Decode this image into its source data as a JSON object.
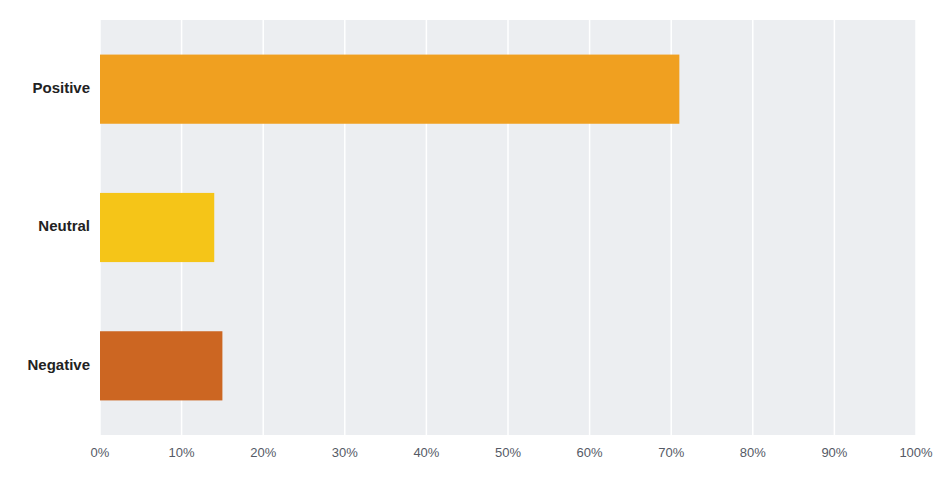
{
  "chart_data": {
    "type": "bar",
    "orientation": "horizontal",
    "categories": [
      "Negative",
      "Neutral",
      "Positive"
    ],
    "values": [
      15,
      14,
      71
    ],
    "colors": [
      "#cc6622",
      "#f5c518",
      "#f0a020"
    ],
    "xlim": [
      0,
      100
    ],
    "xticks": [
      {
        "value": 0,
        "label": "0%"
      },
      {
        "value": 10,
        "label": "10%"
      },
      {
        "value": 20,
        "label": "20%"
      },
      {
        "value": 30,
        "label": "30%"
      },
      {
        "value": 40,
        "label": "40%"
      },
      {
        "value": 50,
        "label": "50%"
      },
      {
        "value": 60,
        "label": "60%"
      },
      {
        "value": 70,
        "label": "70%"
      },
      {
        "value": 80,
        "label": "80%"
      },
      {
        "value": 90,
        "label": "90%"
      },
      {
        "value": 100,
        "label": "100%"
      }
    ],
    "grid": true
  }
}
